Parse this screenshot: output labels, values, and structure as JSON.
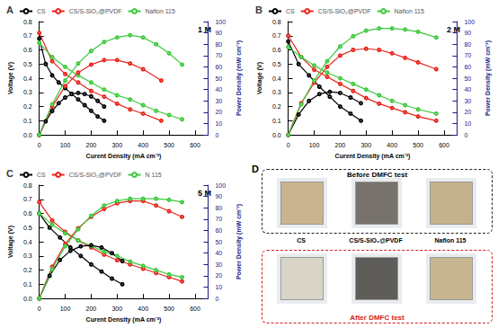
{
  "chart_data": [
    {
      "type": "line",
      "title": "A",
      "annotation": "1 M",
      "xlabel": "Curent Density (mA cm⁻²)",
      "ylabel": "Voltage (V)",
      "y2label": "Power Density (mW cm⁻²)",
      "xlim": [
        0,
        650
      ],
      "xticks": [
        0,
        100,
        200,
        300,
        400,
        500,
        600
      ],
      "ylim": [
        0,
        0.8
      ],
      "yticks": [
        {
          "value": 0,
          "label": "0.0"
        },
        0.1,
        0.2,
        0.3,
        0.4,
        0.5,
        0.6,
        0.7,
        0.8
      ],
      "y2lim": [
        0,
        100
      ],
      "y2ticks": [
        0,
        10,
        20,
        30,
        40,
        50,
        60,
        70,
        80,
        90,
        100
      ],
      "grid": false,
      "legend": "top",
      "marker": "circle",
      "line_style": "solid",
      "series": [
        {
          "name": "CS",
          "color": "#000000",
          "axis": "y",
          "x": [
            0,
            25,
            50,
            75,
            100,
            125,
            150,
            175,
            200,
            225,
            250
          ],
          "values": [
            0.68,
            0.5,
            0.42,
            0.37,
            0.33,
            0.29,
            0.25,
            0.21,
            0.17,
            0.13,
            0.1
          ]
        },
        {
          "name": "CS/S-SiO₂@PVDF",
          "color": "#e8241c",
          "axis": "y",
          "x": [
            0,
            50,
            100,
            150,
            200,
            250,
            300,
            350,
            400,
            470
          ],
          "values": [
            0.72,
            0.52,
            0.43,
            0.37,
            0.31,
            0.27,
            0.22,
            0.18,
            0.15,
            0.1
          ]
        },
        {
          "name": "Nafion 115",
          "color": "#3cc93c",
          "axis": "y",
          "x": [
            0,
            50,
            100,
            150,
            200,
            250,
            300,
            350,
            400,
            450,
            500,
            550
          ],
          "values": [
            0.65,
            0.55,
            0.48,
            0.42,
            0.37,
            0.32,
            0.28,
            0.25,
            0.21,
            0.17,
            0.14,
            0.11
          ]
        },
        {
          "name": "CS",
          "color": "#000000",
          "axis": "y2",
          "x": [
            0,
            25,
            50,
            75,
            100,
            125,
            150,
            175,
            200,
            225,
            250
          ],
          "values": [
            0,
            12,
            21,
            28,
            33,
            36,
            37,
            36,
            34,
            30,
            25
          ]
        },
        {
          "name": "CS/S-SiO₂@PVDF",
          "color": "#e8241c",
          "axis": "y2",
          "x": [
            0,
            50,
            100,
            150,
            200,
            250,
            300,
            350,
            400,
            470
          ],
          "values": [
            0,
            25,
            43,
            55,
            62,
            66,
            66,
            63,
            58,
            48
          ]
        },
        {
          "name": "Nafion 115",
          "color": "#3cc93c",
          "axis": "y2",
          "x": [
            0,
            50,
            100,
            150,
            200,
            250,
            300,
            350,
            400,
            450,
            500,
            550
          ],
          "values": [
            0,
            27,
            48,
            63,
            74,
            82,
            86,
            88,
            86,
            80,
            72,
            62
          ]
        }
      ]
    },
    {
      "type": "line",
      "title": "B",
      "annotation": "2 M",
      "xlabel": "Curent Density (mA cm⁻²)",
      "ylabel": "Voltage (V)",
      "y2label": "Power Density (mW cm⁻²)",
      "xlim": [
        0,
        650
      ],
      "xticks": [
        0,
        100,
        200,
        300,
        400,
        500,
        600
      ],
      "ylim": [
        0,
        0.8
      ],
      "yticks": [
        {
          "value": 0,
          "label": "0.0"
        },
        0.1,
        0.2,
        0.3,
        0.4,
        0.5,
        0.6,
        0.7,
        0.8
      ],
      "y2lim": [
        0,
        100
      ],
      "y2ticks": [
        0,
        10,
        20,
        30,
        40,
        50,
        60,
        70,
        80,
        90,
        100
      ],
      "grid": false,
      "legend": "top",
      "marker": "circle",
      "line_style": "solid",
      "series": [
        {
          "name": "CS",
          "color": "#000000",
          "axis": "y",
          "x": [
            0,
            40,
            80,
            120,
            160,
            200,
            240,
            280
          ],
          "values": [
            0.66,
            0.5,
            0.42,
            0.34,
            0.27,
            0.2,
            0.15,
            0.1
          ]
        },
        {
          "name": "CS/S-SiO₂@PVDF",
          "color": "#e8241c",
          "axis": "y",
          "x": [
            0,
            50,
            100,
            150,
            200,
            250,
            300,
            350,
            400,
            450,
            500,
            570
          ],
          "values": [
            0.7,
            0.55,
            0.46,
            0.41,
            0.36,
            0.31,
            0.26,
            0.22,
            0.19,
            0.16,
            0.13,
            0.1
          ]
        },
        {
          "name": "Nafion 115",
          "color": "#3cc93c",
          "axis": "y",
          "x": [
            0,
            50,
            100,
            150,
            200,
            250,
            300,
            350,
            400,
            450,
            500,
            570
          ],
          "values": [
            0.62,
            0.55,
            0.49,
            0.44,
            0.4,
            0.36,
            0.32,
            0.28,
            0.24,
            0.21,
            0.18,
            0.15
          ]
        },
        {
          "name": "CS",
          "color": "#000000",
          "axis": "y2",
          "x": [
            0,
            40,
            80,
            120,
            160,
            200,
            240,
            280
          ],
          "values": [
            0,
            18,
            30,
            36,
            38,
            37,
            33,
            28
          ]
        },
        {
          "name": "CS/S-SiO₂@PVDF",
          "color": "#e8241c",
          "axis": "y2",
          "x": [
            0,
            50,
            100,
            150,
            200,
            250,
            300,
            350,
            400,
            450,
            500,
            570
          ],
          "values": [
            0,
            28,
            46,
            60,
            70,
            75,
            76,
            75,
            72,
            68,
            64,
            58
          ]
        },
        {
          "name": "Nafion 115",
          "color": "#3cc93c",
          "axis": "y2",
          "x": [
            0,
            50,
            100,
            150,
            200,
            250,
            300,
            350,
            400,
            450,
            500,
            570
          ],
          "values": [
            0,
            27,
            48,
            65,
            78,
            87,
            92,
            94,
            94,
            93,
            91,
            86
          ]
        }
      ]
    },
    {
      "type": "line",
      "title": "C",
      "annotation": "5 M",
      "xlabel": "Curent Density (mA cm⁻²)",
      "ylabel": "Voltage (V)",
      "y2label": "Power Density (mW cm⁻²)",
      "xlim": [
        0,
        650
      ],
      "xticks": [
        0,
        100,
        200,
        300,
        400,
        500,
        600
      ],
      "ylim": [
        0,
        0.8
      ],
      "yticks": [
        {
          "value": 0,
          "label": "0.0"
        },
        0.1,
        0.2,
        0.3,
        0.4,
        0.5,
        0.6,
        0.7,
        0.8
      ],
      "y2lim": [
        0,
        100
      ],
      "y2ticks": [
        0,
        10,
        20,
        30,
        40,
        50,
        60,
        70,
        80,
        90,
        100
      ],
      "grid": false,
      "legend": "top",
      "marker": "circle",
      "line_style": "solid",
      "series": [
        {
          "name": "CS",
          "color": "#000000",
          "axis": "y",
          "x": [
            0,
            40,
            80,
            120,
            160,
            200,
            240,
            280,
            320
          ],
          "values": [
            0.6,
            0.5,
            0.43,
            0.36,
            0.3,
            0.24,
            0.19,
            0.14,
            0.1
          ]
        },
        {
          "name": "CS/S-SiO₂@PVDF",
          "color": "#e8241c",
          "axis": "y",
          "x": [
            0,
            50,
            100,
            150,
            200,
            250,
            300,
            350,
            400,
            450,
            500,
            550
          ],
          "values": [
            0.68,
            0.55,
            0.47,
            0.41,
            0.36,
            0.31,
            0.27,
            0.24,
            0.21,
            0.18,
            0.15,
            0.12
          ]
        },
        {
          "name": "N 115",
          "color": "#3cc93c",
          "axis": "y",
          "x": [
            0,
            50,
            100,
            150,
            200,
            250,
            300,
            350,
            400,
            450,
            500,
            550
          ],
          "values": [
            0.6,
            0.52,
            0.46,
            0.41,
            0.37,
            0.33,
            0.3,
            0.26,
            0.23,
            0.2,
            0.17,
            0.15
          ]
        },
        {
          "name": "CS",
          "color": "#000000",
          "axis": "y2",
          "x": [
            0,
            40,
            80,
            120,
            160,
            200,
            240,
            280,
            320
          ],
          "values": [
            0,
            20,
            34,
            42,
            46,
            47,
            45,
            40,
            33
          ]
        },
        {
          "name": "CS/S-SiO₂@PVDF",
          "color": "#e8241c",
          "axis": "y2",
          "x": [
            0,
            50,
            100,
            150,
            200,
            250,
            300,
            350,
            400,
            450,
            500,
            550
          ],
          "values": [
            0,
            28,
            48,
            62,
            72,
            79,
            84,
            86,
            86,
            82,
            77,
            72
          ]
        },
        {
          "name": "N 115",
          "color": "#3cc93c",
          "axis": "y2",
          "x": [
            0,
            50,
            100,
            150,
            200,
            250,
            300,
            350,
            400,
            450,
            500,
            550
          ],
          "values": [
            0,
            26,
            46,
            61,
            73,
            82,
            86,
            88,
            88,
            88,
            87,
            85
          ]
        }
      ]
    }
  ],
  "photo_panel": {
    "label": "D",
    "samples": [
      "CS",
      "CS/S-SiO₂@PVDF",
      "Nafion 115"
    ],
    "before": "Before DMFC test",
    "after": "After DMFC test"
  }
}
